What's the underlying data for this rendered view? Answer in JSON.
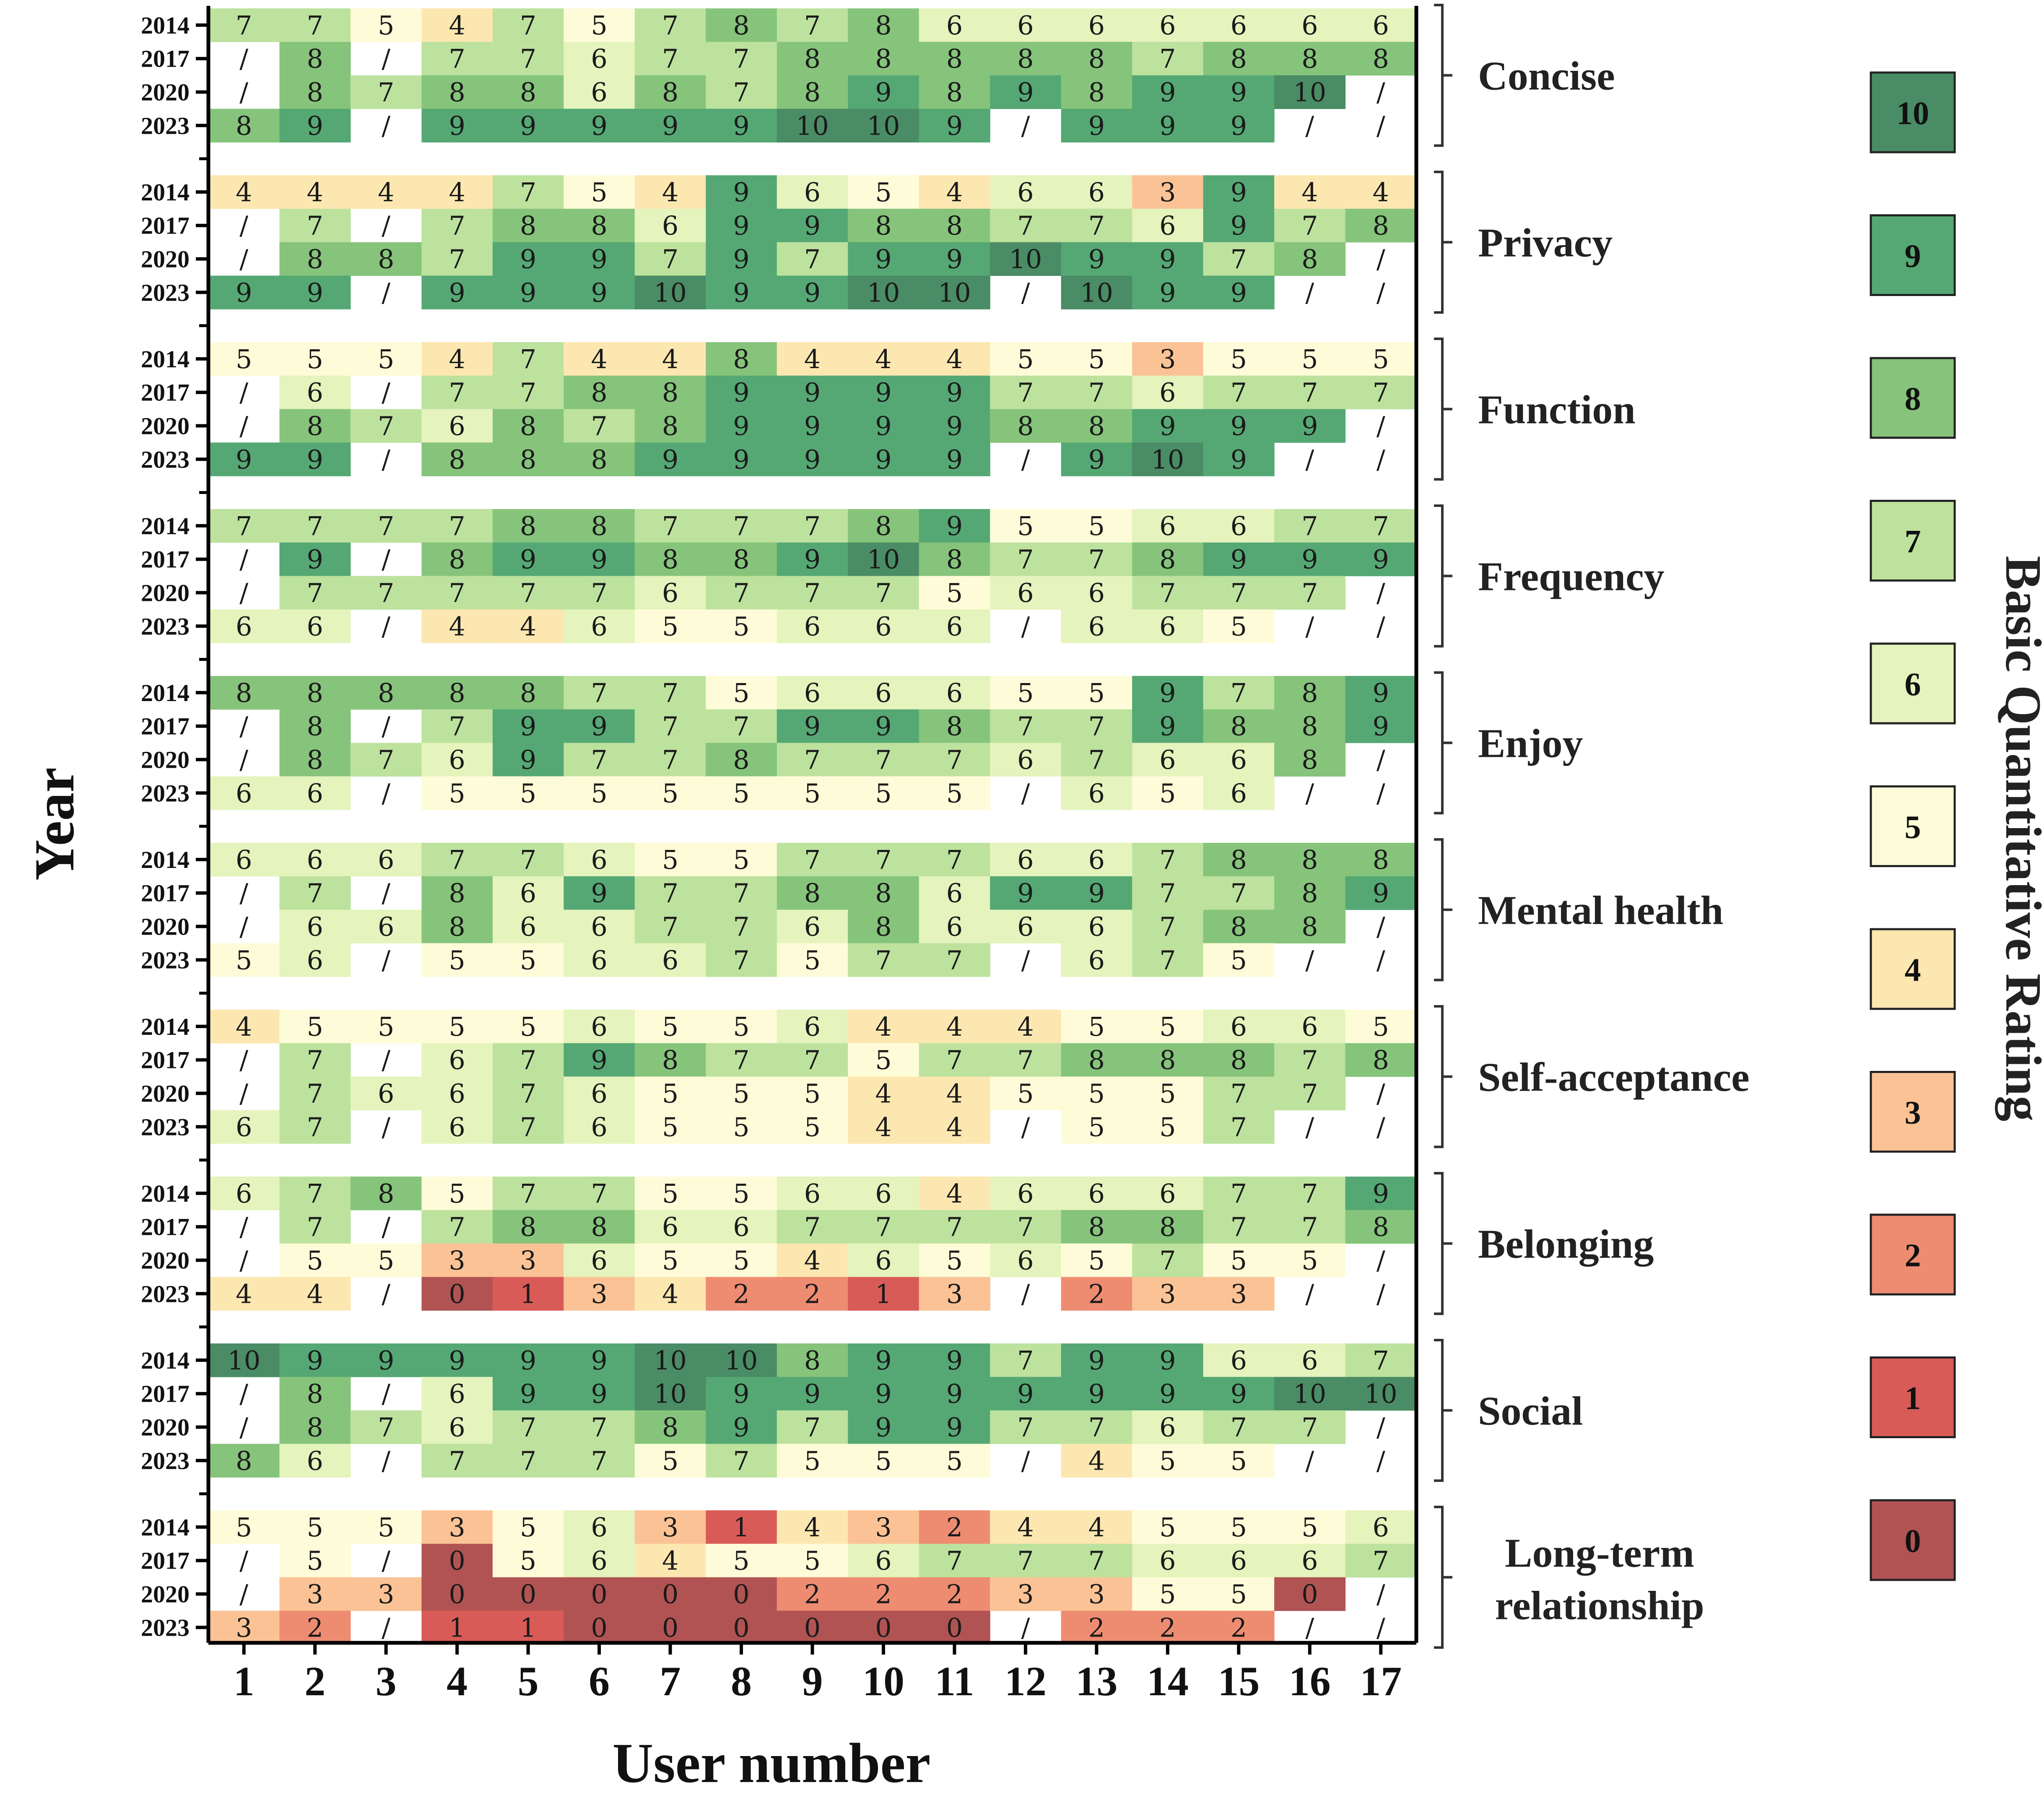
{
  "chart_data": {
    "type": "heatmap",
    "xlabel": "User number",
    "ylabel": "Year",
    "colorbar_label": "Basic Quantitative Rating",
    "users": [
      "1",
      "2",
      "3",
      "4",
      "5",
      "6",
      "7",
      "8",
      "9",
      "10",
      "11",
      "12",
      "13",
      "14",
      "15",
      "16",
      "17"
    ],
    "years": [
      "2014",
      "2017",
      "2020",
      "2023"
    ],
    "missing_symbol": "/",
    "legend_levels": [
      {
        "value": "10",
        "color": "#4a8c65"
      },
      {
        "value": "9",
        "color": "#55a874"
      },
      {
        "value": "8",
        "color": "#86c47b"
      },
      {
        "value": "7",
        "color": "#bde29e"
      },
      {
        "value": "6",
        "color": "#e5f3bd"
      },
      {
        "value": "5",
        "color": "#fefcd8"
      },
      {
        "value": "4",
        "color": "#fde7b0"
      },
      {
        "value": "3",
        "color": "#fbc395"
      },
      {
        "value": "2",
        "color": "#ee8c72"
      },
      {
        "value": "1",
        "color": "#d95b58"
      },
      {
        "value": "0",
        "color": "#b15353"
      }
    ],
    "categories": [
      {
        "name": "Concise",
        "rows": [
          [
            "7",
            "7",
            "5",
            "4",
            "7",
            "5",
            "7",
            "8",
            "7",
            "8",
            "6",
            "6",
            "6",
            "6",
            "6",
            "6",
            "6"
          ],
          [
            "/",
            "8",
            "/",
            "7",
            "7",
            "6",
            "7",
            "7",
            "8",
            "8",
            "8",
            "8",
            "8",
            "7",
            "8",
            "8",
            "8"
          ],
          [
            "/",
            "8",
            "7",
            "8",
            "8",
            "6",
            "8",
            "7",
            "8",
            "9",
            "8",
            "9",
            "8",
            "9",
            "9",
            "10",
            "/"
          ],
          [
            "8",
            "9",
            "/",
            "9",
            "9",
            "9",
            "9",
            "9",
            "10",
            "10",
            "9",
            "/",
            "9",
            "9",
            "9",
            "/",
            "/"
          ]
        ]
      },
      {
        "name": "Privacy",
        "rows": [
          [
            "4",
            "4",
            "4",
            "4",
            "7",
            "5",
            "4",
            "9",
            "6",
            "5",
            "4",
            "6",
            "6",
            "3",
            "9",
            "4",
            "4"
          ],
          [
            "/",
            "7",
            "/",
            "7",
            "8",
            "8",
            "6",
            "9",
            "9",
            "8",
            "8",
            "7",
            "7",
            "6",
            "9",
            "7",
            "8"
          ],
          [
            "/",
            "8",
            "8",
            "7",
            "9",
            "9",
            "7",
            "9",
            "7",
            "9",
            "9",
            "10",
            "9",
            "9",
            "7",
            "8",
            "/"
          ],
          [
            "9",
            "9",
            "/",
            "9",
            "9",
            "9",
            "10",
            "9",
            "9",
            "10",
            "10",
            "/",
            "10",
            "9",
            "9",
            "/",
            "/"
          ]
        ]
      },
      {
        "name": "Function",
        "rows": [
          [
            "5",
            "5",
            "5",
            "4",
            "7",
            "4",
            "4",
            "8",
            "4",
            "4",
            "4",
            "5",
            "5",
            "3",
            "5",
            "5",
            "5"
          ],
          [
            "/",
            "6",
            "/",
            "7",
            "7",
            "8",
            "8",
            "9",
            "9",
            "9",
            "9",
            "7",
            "7",
            "6",
            "7",
            "7",
            "7"
          ],
          [
            "/",
            "8",
            "7",
            "6",
            "8",
            "7",
            "8",
            "9",
            "9",
            "9",
            "9",
            "8",
            "8",
            "9",
            "9",
            "9",
            "/"
          ],
          [
            "9",
            "9",
            "/",
            "8",
            "8",
            "8",
            "9",
            "9",
            "9",
            "9",
            "9",
            "/",
            "9",
            "10",
            "9",
            "/",
            "/"
          ]
        ]
      },
      {
        "name": "Frequency",
        "rows": [
          [
            "7",
            "7",
            "7",
            "7",
            "8",
            "8",
            "7",
            "7",
            "7",
            "8",
            "9",
            "5",
            "5",
            "6",
            "6",
            "7",
            "7"
          ],
          [
            "/",
            "9",
            "/",
            "8",
            "9",
            "9",
            "8",
            "8",
            "9",
            "10",
            "8",
            "7",
            "7",
            "8",
            "9",
            "9",
            "9"
          ],
          [
            "/",
            "7",
            "7",
            "7",
            "7",
            "7",
            "6",
            "7",
            "7",
            "7",
            "5",
            "6",
            "6",
            "7",
            "7",
            "7",
            "/"
          ],
          [
            "6",
            "6",
            "/",
            "4",
            "4",
            "6",
            "5",
            "5",
            "6",
            "6",
            "6",
            "/",
            "6",
            "6",
            "5",
            "/",
            "/"
          ]
        ]
      },
      {
        "name": "Enjoy",
        "rows": [
          [
            "8",
            "8",
            "8",
            "8",
            "8",
            "7",
            "7",
            "5",
            "6",
            "6",
            "6",
            "5",
            "5",
            "9",
            "7",
            "8",
            "9"
          ],
          [
            "/",
            "8",
            "/",
            "7",
            "9",
            "9",
            "7",
            "7",
            "9",
            "9",
            "8",
            "7",
            "7",
            "9",
            "8",
            "8",
            "9"
          ],
          [
            "/",
            "8",
            "7",
            "6",
            "9",
            "7",
            "7",
            "8",
            "7",
            "7",
            "7",
            "6",
            "7",
            "6",
            "6",
            "8",
            "/"
          ],
          [
            "6",
            "6",
            "/",
            "5",
            "5",
            "5",
            "5",
            "5",
            "5",
            "5",
            "5",
            "/",
            "6",
            "5",
            "6",
            "/",
            "/"
          ]
        ]
      },
      {
        "name": "Mental health",
        "rows": [
          [
            "6",
            "6",
            "6",
            "7",
            "7",
            "6",
            "5",
            "5",
            "7",
            "7",
            "7",
            "6",
            "6",
            "7",
            "8",
            "8",
            "8"
          ],
          [
            "/",
            "7",
            "/",
            "8",
            "6",
            "9",
            "7",
            "7",
            "8",
            "8",
            "6",
            "9",
            "9",
            "7",
            "7",
            "8",
            "9"
          ],
          [
            "/",
            "6",
            "6",
            "8",
            "6",
            "6",
            "7",
            "7",
            "6",
            "8",
            "6",
            "6",
            "6",
            "7",
            "8",
            "8",
            "/"
          ],
          [
            "5",
            "6",
            "/",
            "5",
            "5",
            "6",
            "6",
            "7",
            "5",
            "7",
            "7",
            "/",
            "6",
            "7",
            "5",
            "/",
            "/"
          ]
        ]
      },
      {
        "name": "Self-acceptance",
        "rows": [
          [
            "4",
            "5",
            "5",
            "5",
            "5",
            "6",
            "5",
            "5",
            "6",
            "4",
            "4",
            "4",
            "5",
            "5",
            "6",
            "6",
            "5"
          ],
          [
            "/",
            "7",
            "/",
            "6",
            "7",
            "9",
            "8",
            "7",
            "7",
            "5",
            "7",
            "7",
            "8",
            "8",
            "8",
            "7",
            "8"
          ],
          [
            "/",
            "7",
            "6",
            "6",
            "7",
            "6",
            "5",
            "5",
            "5",
            "4",
            "4",
            "5",
            "5",
            "5",
            "7",
            "7",
            "/"
          ],
          [
            "6",
            "7",
            "/",
            "6",
            "7",
            "6",
            "5",
            "5",
            "5",
            "4",
            "4",
            "/",
            "5",
            "5",
            "7",
            "/",
            "/"
          ]
        ]
      },
      {
        "name": "Belonging",
        "rows": [
          [
            "6",
            "7",
            "8",
            "5",
            "7",
            "7",
            "5",
            "5",
            "6",
            "6",
            "4",
            "6",
            "6",
            "6",
            "7",
            "7",
            "9"
          ],
          [
            "/",
            "7",
            "/",
            "7",
            "8",
            "8",
            "6",
            "6",
            "7",
            "7",
            "7",
            "7",
            "8",
            "8",
            "7",
            "7",
            "8"
          ],
          [
            "/",
            "5",
            "5",
            "3",
            "3",
            "6",
            "5",
            "5",
            "4",
            "6",
            "5",
            "6",
            "5",
            "7",
            "5",
            "5",
            "/"
          ],
          [
            "4",
            "4",
            "/",
            "0",
            "1",
            "3",
            "4",
            "2",
            "2",
            "1",
            "3",
            "/",
            "2",
            "3",
            "3",
            "/",
            "/"
          ]
        ]
      },
      {
        "name": "Social",
        "rows": [
          [
            "10",
            "9",
            "9",
            "9",
            "9",
            "9",
            "10",
            "10",
            "8",
            "9",
            "9",
            "7",
            "9",
            "9",
            "6",
            "6",
            "7"
          ],
          [
            "/",
            "8",
            "/",
            "6",
            "9",
            "9",
            "10",
            "9",
            "9",
            "9",
            "9",
            "9",
            "9",
            "9",
            "9",
            "10",
            "10"
          ],
          [
            "/",
            "8",
            "7",
            "6",
            "7",
            "7",
            "8",
            "9",
            "7",
            "9",
            "9",
            "7",
            "7",
            "6",
            "7",
            "7",
            "/"
          ],
          [
            "8",
            "6",
            "/",
            "7",
            "7",
            "7",
            "5",
            "7",
            "5",
            "5",
            "5",
            "/",
            "4",
            "5",
            "5",
            "/",
            "/"
          ]
        ]
      },
      {
        "name": "Long-term relationship",
        "rows": [
          [
            "5",
            "5",
            "5",
            "3",
            "5",
            "6",
            "3",
            "1",
            "4",
            "3",
            "2",
            "4",
            "4",
            "5",
            "5",
            "5",
            "6"
          ],
          [
            "/",
            "5",
            "/",
            "0",
            "5",
            "6",
            "4",
            "5",
            "5",
            "6",
            "7",
            "7",
            "7",
            "6",
            "6",
            "6",
            "7"
          ],
          [
            "/",
            "3",
            "3",
            "0",
            "0",
            "0",
            "0",
            "0",
            "2",
            "2",
            "2",
            "3",
            "3",
            "5",
            "5",
            "0",
            "/"
          ],
          [
            "3",
            "2",
            "/",
            "1",
            "1",
            "0",
            "0",
            "0",
            "0",
            "0",
            "0",
            "/",
            "2",
            "2",
            "2",
            "/",
            "/"
          ]
        ]
      }
    ]
  }
}
